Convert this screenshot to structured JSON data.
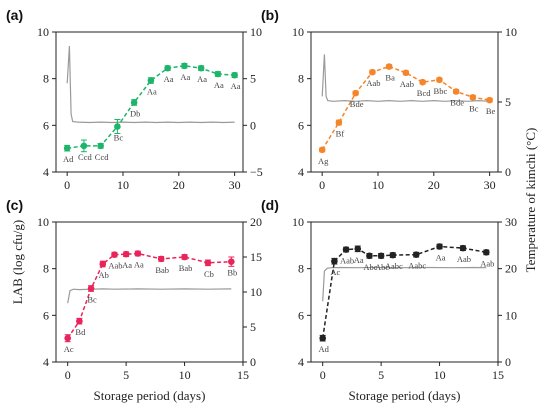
{
  "figure": {
    "shared_ylabel_left": "LAB (log cfu/g)",
    "shared_ylabel_right": "Temperature of kimchi (°C)",
    "shared_xlabel": "Storage period (days)"
  },
  "chart_data": [
    {
      "id": "a",
      "panel_label": "(a)",
      "type": "line",
      "color": "#1db56a",
      "xlim": [
        -2,
        31.5
      ],
      "xticks": [
        0,
        10,
        20,
        30
      ],
      "ylim_left": [
        4,
        10
      ],
      "yticks_left": [
        4,
        6,
        8,
        10
      ],
      "ylim_right": [
        -5,
        10
      ],
      "yticks_right": [
        -5,
        0,
        5,
        10
      ],
      "show_ylabel_left": true,
      "show_ylabel_right": false,
      "show_xlabel": false,
      "lab_series": {
        "x": [
          0,
          3,
          6,
          9,
          12,
          15,
          18,
          21,
          24,
          27,
          30
        ],
        "y": [
          5.02,
          5.12,
          5.12,
          5.95,
          6.98,
          7.92,
          8.45,
          8.55,
          8.45,
          8.2,
          8.15
        ],
        "err": [
          0.12,
          0.25,
          0.1,
          0.3,
          0.12,
          0.12,
          0.1,
          0.1,
          0.1,
          0.1,
          0.1
        ],
        "labels": [
          "Ad",
          "Ccd",
          "Ccd",
          "Bc",
          "Db",
          "Aa",
          "Aa",
          "Aa",
          "Aa",
          "Aa",
          "Aa"
        ]
      },
      "temperature": {
        "x": [
          0,
          0.4,
          0.7,
          1,
          2,
          4,
          6,
          8,
          10,
          12,
          14,
          16,
          18,
          20,
          22,
          24,
          26,
          28,
          30
        ],
        "y": [
          4.5,
          8.5,
          1.2,
          0.4,
          0.35,
          0.3,
          0.35,
          0.3,
          0.35,
          0.3,
          0.35,
          0.3,
          0.35,
          0.3,
          0.35,
          0.3,
          0.35,
          0.3,
          0.35
        ]
      }
    },
    {
      "id": "b",
      "panel_label": "(b)",
      "type": "line",
      "color": "#f5852a",
      "xlim": [
        -2,
        31.5
      ],
      "xticks": [
        0,
        10,
        20,
        30
      ],
      "ylim_left": [
        4,
        10
      ],
      "yticks_left": [
        4,
        6,
        8,
        10
      ],
      "ylim_right": [
        0,
        10
      ],
      "yticks_right": [
        0,
        5,
        10
      ],
      "show_ylabel_left": false,
      "show_ylabel_right": true,
      "show_xlabel": false,
      "lab_series": {
        "x": [
          0,
          3,
          6,
          9,
          12,
          15,
          18,
          21,
          24,
          27,
          30
        ],
        "y": [
          4.95,
          6.12,
          7.38,
          8.28,
          8.52,
          8.25,
          7.85,
          7.95,
          7.45,
          7.2,
          7.08
        ],
        "err": [
          0.08,
          0.1,
          0.08,
          0.08,
          0.08,
          0.08,
          0.08,
          0.08,
          0.08,
          0.08,
          0.08
        ],
        "labels": [
          "Ag",
          "Bf",
          "Bde",
          "Aab",
          "Ba",
          "Aab",
          "Bcd",
          "Bbc",
          "Bde",
          "Bc",
          "Be"
        ]
      },
      "temperature": {
        "x": [
          0,
          0.4,
          0.7,
          1,
          2,
          4,
          6,
          8,
          10,
          12,
          14,
          16,
          18,
          20,
          22,
          24,
          26,
          28,
          30
        ],
        "y": [
          5.4,
          8.4,
          5.4,
          5.1,
          5.05,
          5.1,
          5.05,
          5.1,
          5.05,
          5.1,
          5.05,
          5.1,
          5.05,
          5.1,
          5.05,
          5.1,
          5.05,
          5.1,
          5.05
        ]
      }
    },
    {
      "id": "c",
      "panel_label": "(c)",
      "type": "line",
      "color": "#e8245a",
      "xlim": [
        -1,
        15
      ],
      "xticks": [
        0,
        5,
        10,
        15
      ],
      "ylim_left": [
        4,
        10
      ],
      "yticks_left": [
        4,
        6,
        8,
        10
      ],
      "ylim_right": [
        0,
        20
      ],
      "yticks_right": [
        0,
        5,
        10,
        15,
        20
      ],
      "show_ylabel_left": true,
      "show_ylabel_right": false,
      "show_xlabel": true,
      "lab_series": {
        "x": [
          0,
          1,
          2,
          3,
          4,
          5,
          6,
          8,
          10,
          12,
          14
        ],
        "y": [
          5.02,
          5.75,
          7.15,
          8.2,
          8.6,
          8.62,
          8.65,
          8.42,
          8.5,
          8.25,
          8.3
        ],
        "err": [
          0.15,
          0.12,
          0.12,
          0.12,
          0.1,
          0.1,
          0.1,
          0.1,
          0.1,
          0.12,
          0.2
        ],
        "labels": [
          "Ac",
          "Bd",
          "Bc",
          "Ab",
          "Aab",
          "Aa",
          "Aa",
          "Bab",
          "Bab",
          "Cb",
          "Bb"
        ]
      },
      "temperature": {
        "x": [
          0,
          0.2,
          0.5,
          1,
          2,
          3,
          4,
          6,
          8,
          10,
          12,
          14
        ],
        "y": [
          8.4,
          10.2,
          10.4,
          10.35,
          10.4,
          10.45,
          10.4,
          10.45,
          10.4,
          10.45,
          10.4,
          10.45
        ]
      }
    },
    {
      "id": "d",
      "panel_label": "(d)",
      "type": "line",
      "color": "#222222",
      "xlim": [
        -1,
        15
      ],
      "xticks": [
        0,
        5,
        10,
        15
      ],
      "ylim_left": [
        4,
        10
      ],
      "yticks_left": [
        4,
        6,
        8,
        10
      ],
      "ylim_right": [
        0,
        30
      ],
      "yticks_right": [
        0,
        10,
        20,
        30
      ],
      "show_ylabel_left": false,
      "show_ylabel_right": true,
      "show_xlabel": true,
      "lab_series": {
        "x": [
          0,
          1,
          2,
          3,
          4,
          5,
          6,
          8,
          10,
          12,
          14
        ],
        "y": [
          5.02,
          8.32,
          8.82,
          8.85,
          8.55,
          8.55,
          8.58,
          8.6,
          8.95,
          8.88,
          8.7
        ],
        "err": [
          0.12,
          0.12,
          0.1,
          0.12,
          0.1,
          0.1,
          0.1,
          0.1,
          0.1,
          0.1,
          0.1
        ],
        "labels": [
          "Ad",
          "Ac",
          "Aab",
          "Aa",
          "Abc",
          "Abc",
          "Aabc",
          "Aabc",
          "Aa",
          "Aab",
          "Aab"
        ]
      },
      "temperature": {
        "x": [
          0,
          0.15,
          0.4,
          0.8,
          1.5,
          3,
          5,
          7,
          9,
          11,
          13,
          14
        ],
        "y": [
          13,
          19.5,
          20.1,
          20.2,
          20.25,
          20.2,
          20.25,
          20.2,
          20.25,
          20.2,
          20.25,
          20.2
        ]
      }
    }
  ]
}
